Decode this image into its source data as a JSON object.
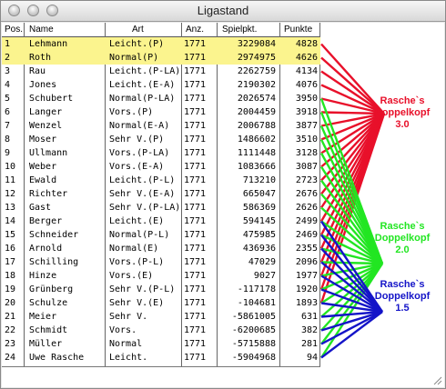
{
  "window": {
    "title": "Ligastand"
  },
  "columns": {
    "pos": "Pos.",
    "name": "Name",
    "art": "Art",
    "anz": "Anz.",
    "spielpkt": "Spielpkt.",
    "punkte": "Punkte"
  },
  "rows": [
    {
      "pos": "1",
      "name": "Lehmann",
      "art": "Leicht.(P)",
      "anz": "1771",
      "spielpkt": "3229084",
      "punkte": "4828",
      "highlight": true
    },
    {
      "pos": "2",
      "name": "Roth",
      "art": "Normal(P)",
      "anz": "1771",
      "spielpkt": "2974975",
      "punkte": "4626",
      "highlight": true
    },
    {
      "pos": "3",
      "name": "Rau",
      "art": "Leicht.(P-LA)",
      "anz": "1771",
      "spielpkt": "2262759",
      "punkte": "4134",
      "highlight": false
    },
    {
      "pos": "4",
      "name": "Jones",
      "art": "Leicht.(E-A)",
      "anz": "1771",
      "spielpkt": "2190302",
      "punkte": "4076",
      "highlight": false
    },
    {
      "pos": "5",
      "name": "Schubert",
      "art": "Normal(P-LA)",
      "anz": "1771",
      "spielpkt": "2026574",
      "punkte": "3950",
      "highlight": false
    },
    {
      "pos": "6",
      "name": "Langer",
      "art": "Vors.(P)",
      "anz": "1771",
      "spielpkt": "2004459",
      "punkte": "3918",
      "highlight": false
    },
    {
      "pos": "7",
      "name": "Wenzel",
      "art": "Normal(E-A)",
      "anz": "1771",
      "spielpkt": "2006788",
      "punkte": "3877",
      "highlight": false
    },
    {
      "pos": "8",
      "name": "Moser",
      "art": "Sehr V.(P)",
      "anz": "1771",
      "spielpkt": "1486602",
      "punkte": "3510",
      "highlight": false
    },
    {
      "pos": "9",
      "name": "Ullmann",
      "art": "Vors.(P-LA)",
      "anz": "1771",
      "spielpkt": "1111448",
      "punkte": "3128",
      "highlight": false
    },
    {
      "pos": "10",
      "name": "Weber",
      "art": "Vors.(E-A)",
      "anz": "1771",
      "spielpkt": "1083666",
      "punkte": "3087",
      "highlight": false
    },
    {
      "pos": "11",
      "name": "Ewald",
      "art": "Leicht.(P-L)",
      "anz": "1771",
      "spielpkt": "713210",
      "punkte": "2723",
      "highlight": false
    },
    {
      "pos": "12",
      "name": "Richter",
      "art": "Sehr V.(E-A)",
      "anz": "1771",
      "spielpkt": "665047",
      "punkte": "2676",
      "highlight": false
    },
    {
      "pos": "13",
      "name": "Gast",
      "art": "Sehr V.(P-LA)",
      "anz": "1771",
      "spielpkt": "586369",
      "punkte": "2626",
      "highlight": false
    },
    {
      "pos": "14",
      "name": "Berger",
      "art": "Leicht.(E)",
      "anz": "1771",
      "spielpkt": "594145",
      "punkte": "2499",
      "highlight": false
    },
    {
      "pos": "15",
      "name": "Schneider",
      "art": "Normal(P-L)",
      "anz": "1771",
      "spielpkt": "475985",
      "punkte": "2469",
      "highlight": false
    },
    {
      "pos": "16",
      "name": "Arnold",
      "art": "Normal(E)",
      "anz": "1771",
      "spielpkt": "436936",
      "punkte": "2355",
      "highlight": false
    },
    {
      "pos": "17",
      "name": "Schilling",
      "art": "Vors.(P-L)",
      "anz": "1771",
      "spielpkt": "47029",
      "punkte": "2096",
      "highlight": false
    },
    {
      "pos": "18",
      "name": "Hinze",
      "art": "Vors.(E)",
      "anz": "1771",
      "spielpkt": "9027",
      "punkte": "1977",
      "highlight": false
    },
    {
      "pos": "19",
      "name": "Grünberg",
      "art": "Sehr V.(P-L)",
      "anz": "1771",
      "spielpkt": "-117178",
      "punkte": "1920",
      "highlight": false
    },
    {
      "pos": "20",
      "name": "Schulze",
      "art": "Sehr V.(E)",
      "anz": "1771",
      "spielpkt": "-104681",
      "punkte": "1893",
      "highlight": false
    },
    {
      "pos": "21",
      "name": "Meier",
      "art": "Sehr V.",
      "anz": "1771",
      "spielpkt": "-5861005",
      "punkte": "631",
      "highlight": false
    },
    {
      "pos": "22",
      "name": "Schmidt",
      "art": "Vors.",
      "anz": "1771",
      "spielpkt": "-6200685",
      "punkte": "382",
      "highlight": false
    },
    {
      "pos": "23",
      "name": "Müller",
      "art": "Normal",
      "anz": "1771",
      "spielpkt": "-5715888",
      "punkte": "281",
      "highlight": false
    },
    {
      "pos": "24",
      "name": "Uwe Rasche",
      "art": "Leicht.",
      "anz": "1771",
      "spielpkt": "-5904968",
      "punkte": "94",
      "highlight": false
    }
  ],
  "groups": [
    {
      "label": "Rasche`s\nDoppelkopf\n3.0",
      "color": "#e8102a",
      "members": [
        1,
        2,
        3,
        4,
        5,
        6,
        7,
        8,
        9,
        10,
        11,
        12,
        13,
        14,
        15,
        16,
        17,
        18,
        19,
        20
      ]
    },
    {
      "label": "Rasche`s\nDoppelkopf\n2.0",
      "color": "#22e622",
      "members": [
        5,
        6,
        7,
        8,
        9,
        10,
        11,
        12,
        13,
        14,
        15,
        16,
        17,
        18,
        19,
        20,
        21,
        22,
        23,
        24
      ]
    },
    {
      "label": "Rasche`s\nDoppelkopf\n1.5",
      "color": "#1414c8",
      "members": [
        14,
        15,
        16,
        17,
        18,
        19,
        20,
        21,
        22,
        23,
        24
      ]
    }
  ],
  "colors": {
    "highlight": "#fbf48e",
    "window_bg": "#e8e8e8"
  }
}
